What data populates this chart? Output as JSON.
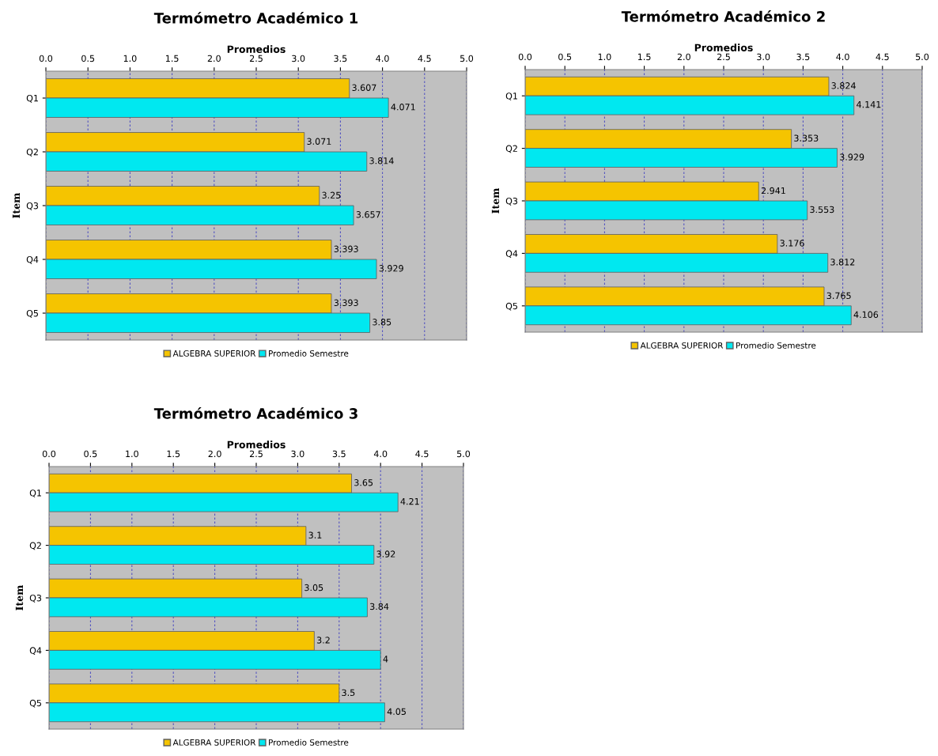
{
  "chart_data": [
    {
      "type": "bar",
      "orientation": "horizontal",
      "title": "Termómetro Académico 1",
      "xlabel": "Promedios",
      "ylabel": "Item",
      "categories": [
        "Q1",
        "Q2",
        "Q3",
        "Q4",
        "Q5"
      ],
      "xlim": [
        0,
        5
      ],
      "xticks": [
        {
          "value": 0,
          "label": "0.0"
        },
        {
          "value": 0.5,
          "label": "0.5"
        },
        {
          "value": 1,
          "label": "1.0"
        },
        {
          "value": 1.5,
          "label": "1.5"
        },
        {
          "value": 2,
          "label": "2.0"
        },
        {
          "value": 2.5,
          "label": "2.5"
        },
        {
          "value": 3,
          "label": "3.0"
        },
        {
          "value": 3.5,
          "label": "3.5"
        },
        {
          "value": 4,
          "label": "4.0"
        },
        {
          "value": 4.5,
          "label": "4.5"
        },
        {
          "value": 5,
          "label": "5.0"
        }
      ],
      "grid": "x",
      "legend": "bottom",
      "data_labels": true,
      "series": [
        {
          "name": "ALGEBRA SUPERIOR",
          "color": "#f5c400",
          "values": [
            3.607,
            3.071,
            3.25,
            3.393,
            3.393
          ]
        },
        {
          "name": "Promedio Semestre",
          "color": "#00e8f0",
          "values": [
            4.071,
            3.814,
            3.657,
            3.929,
            3.85
          ]
        }
      ]
    },
    {
      "type": "bar",
      "orientation": "horizontal",
      "title": "Termómetro Académico 2",
      "xlabel": "Promedios",
      "ylabel": "Item",
      "categories": [
        "Q1",
        "Q2",
        "Q3",
        "Q4",
        "Q5"
      ],
      "xlim": [
        0,
        5
      ],
      "xticks": [
        {
          "value": 0,
          "label": "0.0"
        },
        {
          "value": 0.5,
          "label": "0.5"
        },
        {
          "value": 1,
          "label": "1.0"
        },
        {
          "value": 1.5,
          "label": "1.5"
        },
        {
          "value": 2,
          "label": "2.0"
        },
        {
          "value": 2.5,
          "label": "2.5"
        },
        {
          "value": 3,
          "label": "3.0"
        },
        {
          "value": 3.5,
          "label": "3.5"
        },
        {
          "value": 4,
          "label": "4.0"
        },
        {
          "value": 4.5,
          "label": "4.5"
        },
        {
          "value": 5,
          "label": "5.0"
        }
      ],
      "grid": "x",
      "legend": "bottom",
      "data_labels": true,
      "series": [
        {
          "name": "ALGEBRA SUPERIOR",
          "color": "#f5c400",
          "values": [
            3.824,
            3.353,
            2.941,
            3.176,
            3.765
          ]
        },
        {
          "name": "Promedio Semestre",
          "color": "#00e8f0",
          "values": [
            4.141,
            3.929,
            3.553,
            3.812,
            4.106
          ]
        }
      ]
    },
    {
      "type": "bar",
      "orientation": "horizontal",
      "title": "Termómetro Académico 3",
      "xlabel": "Promedios",
      "ylabel": "Item",
      "categories": [
        "Q1",
        "Q2",
        "Q3",
        "Q4",
        "Q5"
      ],
      "xlim": [
        0,
        5
      ],
      "xticks": [
        {
          "value": 0,
          "label": "0.0"
        },
        {
          "value": 0.5,
          "label": "0.5"
        },
        {
          "value": 1,
          "label": "1.0"
        },
        {
          "value": 1.5,
          "label": "1.5"
        },
        {
          "value": 2,
          "label": "2.0"
        },
        {
          "value": 2.5,
          "label": "2.5"
        },
        {
          "value": 3,
          "label": "3.0"
        },
        {
          "value": 3.5,
          "label": "3.5"
        },
        {
          "value": 4,
          "label": "4.0"
        },
        {
          "value": 4.5,
          "label": "4.5"
        },
        {
          "value": 5,
          "label": "5.0"
        }
      ],
      "grid": "x",
      "legend": "bottom",
      "data_labels": true,
      "series": [
        {
          "name": "ALGEBRA SUPERIOR",
          "color": "#f5c400",
          "values": [
            3.65,
            3.1,
            3.05,
            3.2,
            3.5
          ]
        },
        {
          "name": "Promedio Semestre",
          "color": "#00e8f0",
          "values": [
            4.21,
            3.92,
            3.84,
            4,
            4.05
          ]
        }
      ]
    }
  ]
}
